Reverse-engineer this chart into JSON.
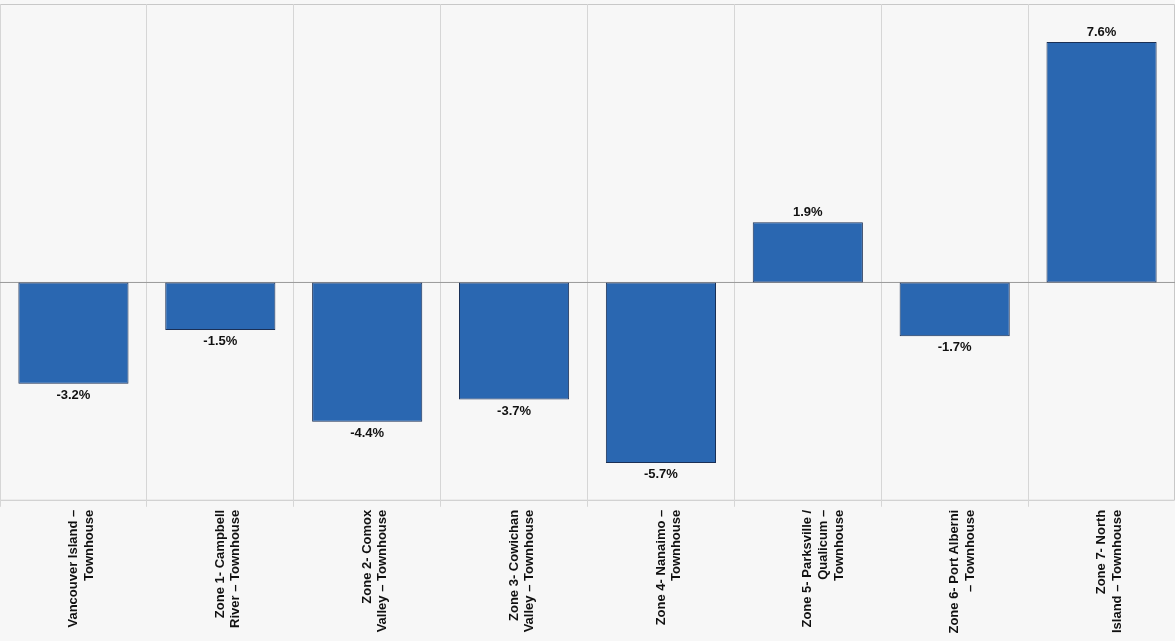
{
  "chart_data": {
    "type": "bar",
    "categories": [
      "Vancouver Island –\nTownhouse",
      "Zone 1- Campbell\nRiver – Townhouse",
      "Zone 2- Comox\nValley – Townhouse",
      "Zone 3- Cowichan\nValley – Townhouse",
      "Zone 4- Nanaimo –\nTownhouse",
      "Zone 5- Parksville /\nQualicum –\nTownhouse",
      "Zone 6- Port Alberni\n– Townhouse",
      "Zone 7- North\nIsland – Townhouse"
    ],
    "values": [
      -3.2,
      -1.5,
      -4.4,
      -3.7,
      -5.7,
      1.9,
      -1.7,
      7.6
    ],
    "color": "#2a67b1",
    "value_labels": [
      "-3.2%",
      "-1.5%",
      "-4.4%",
      "-3.7%",
      "-5.7%",
      "1.9%",
      "-1.7%",
      "7.6%"
    ],
    "grid": "x"
  }
}
